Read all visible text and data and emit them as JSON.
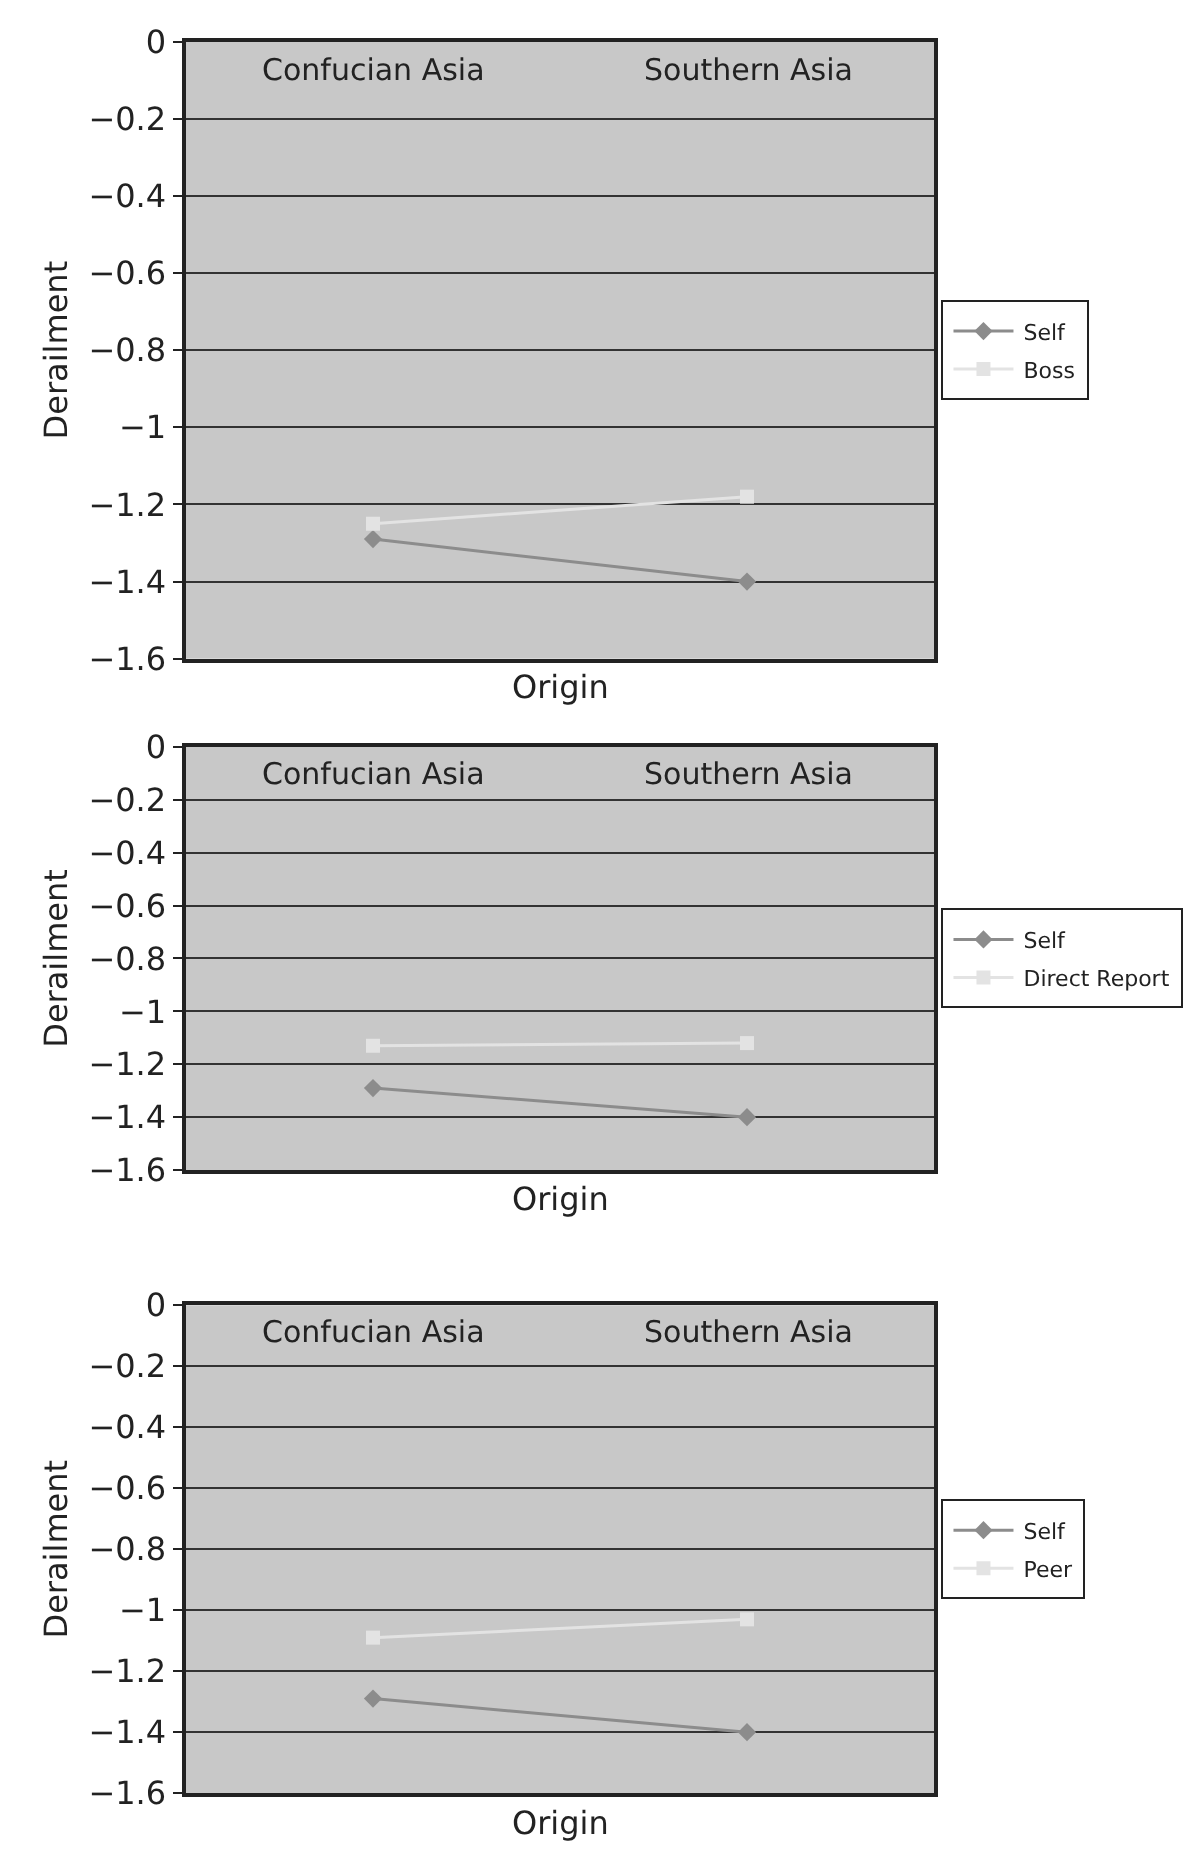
{
  "chart_data": [
    {
      "type": "line",
      "categories": [
        "Confucian Asia",
        "Southern Asia"
      ],
      "xlabel": "Origin",
      "ylabel": "Derailment",
      "ylim": [
        -1.6,
        0
      ],
      "yticks": [
        {
          "value": 0,
          "label": "0"
        },
        {
          "value": -0.2,
          "label": "−0.2"
        },
        {
          "value": -0.4,
          "label": "−0.4"
        },
        {
          "value": -0.6,
          "label": "−0.6"
        },
        {
          "value": -0.8,
          "label": "−0.8"
        },
        {
          "value": -1,
          "label": "−1"
        },
        {
          "value": -1.2,
          "label": "−1.2"
        },
        {
          "value": -1.4,
          "label": "−1.4"
        },
        {
          "value": -1.6,
          "label": "−1.6"
        }
      ],
      "grid": "y",
      "legend": "right",
      "series": [
        {
          "name": "Self",
          "color": "#8c8c8c",
          "marker": "diamond",
          "values": [
            -1.29,
            -1.4
          ]
        },
        {
          "name": "Boss",
          "color": "#e3e3e3",
          "marker": "square",
          "values": [
            -1.25,
            -1.18
          ]
        }
      ]
    },
    {
      "type": "line",
      "categories": [
        "Confucian Asia",
        "Southern Asia"
      ],
      "xlabel": "Origin",
      "ylabel": "Derailment",
      "ylim": [
        -1.6,
        0
      ],
      "yticks": [
        {
          "value": 0,
          "label": "0"
        },
        {
          "value": -0.2,
          "label": "−0.2"
        },
        {
          "value": -0.4,
          "label": "−0.4"
        },
        {
          "value": -0.6,
          "label": "−0.6"
        },
        {
          "value": -0.8,
          "label": "−0.8"
        },
        {
          "value": -1,
          "label": "−1"
        },
        {
          "value": -1.2,
          "label": "−1.2"
        },
        {
          "value": -1.4,
          "label": "−1.4"
        },
        {
          "value": -1.6,
          "label": "−1.6"
        }
      ],
      "grid": "y",
      "legend": "right",
      "series": [
        {
          "name": "Self",
          "color": "#8c8c8c",
          "marker": "diamond",
          "values": [
            -1.29,
            -1.4
          ]
        },
        {
          "name": "Direct Report",
          "color": "#e3e3e3",
          "marker": "square",
          "values": [
            -1.13,
            -1.12
          ]
        }
      ]
    },
    {
      "type": "line",
      "categories": [
        "Confucian Asia",
        "Southern Asia"
      ],
      "xlabel": "Origin",
      "ylabel": "Derailment",
      "ylim": [
        -1.6,
        0
      ],
      "yticks": [
        {
          "value": 0,
          "label": "0"
        },
        {
          "value": -0.2,
          "label": "−0.2"
        },
        {
          "value": -0.4,
          "label": "−0.4"
        },
        {
          "value": -0.6,
          "label": "−0.6"
        },
        {
          "value": -0.8,
          "label": "−0.8"
        },
        {
          "value": -1,
          "label": "−1"
        },
        {
          "value": -1.2,
          "label": "−1.2"
        },
        {
          "value": -1.4,
          "label": "−1.4"
        },
        {
          "value": -1.6,
          "label": "−1.6"
        }
      ],
      "grid": "y",
      "legend": "right",
      "series": [
        {
          "name": "Self",
          "color": "#8c8c8c",
          "marker": "diamond",
          "values": [
            -1.29,
            -1.4
          ]
        },
        {
          "name": "Peer",
          "color": "#e3e3e3",
          "marker": "square",
          "values": [
            -1.09,
            -1.03
          ]
        }
      ]
    }
  ]
}
